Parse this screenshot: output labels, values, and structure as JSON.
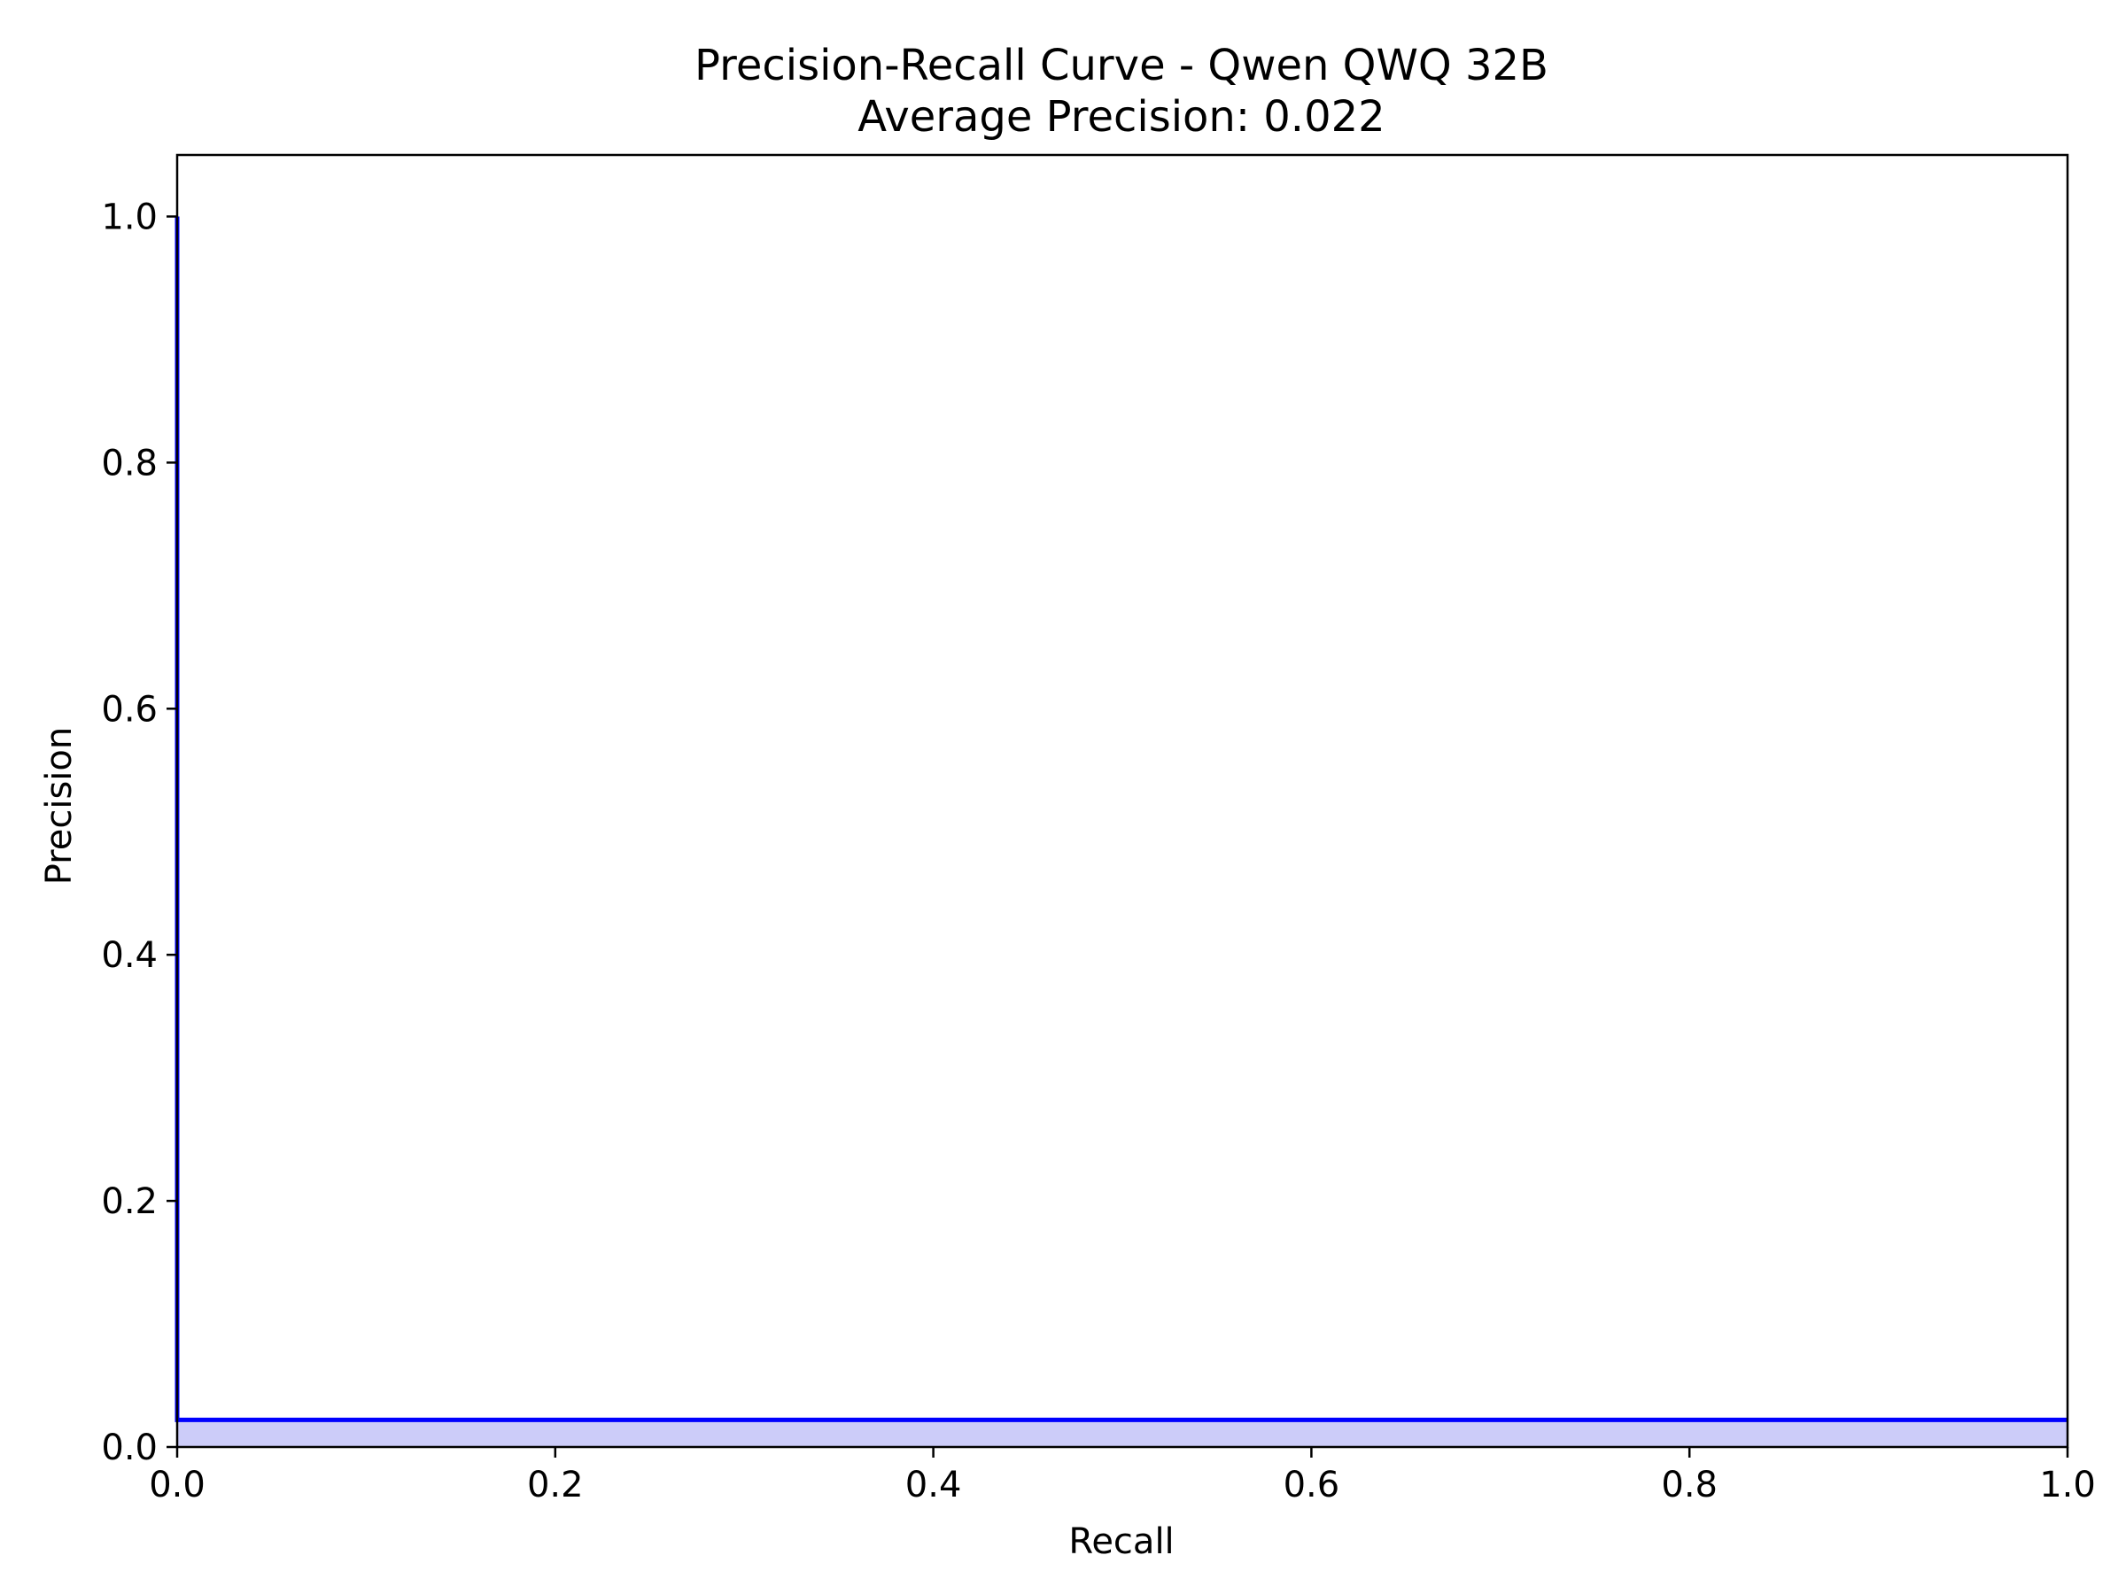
{
  "chart_data": {
    "type": "area",
    "title": "Precision-Recall Curve - Qwen QWQ 32B",
    "subtitle": "Average Precision: 0.022",
    "xlabel": "Recall",
    "ylabel": "Precision",
    "xlim": [
      0.0,
      1.0
    ],
    "ylim": [
      0.0,
      1.05
    ],
    "grid": false,
    "x_ticks": [
      0.0,
      0.2,
      0.4,
      0.6,
      0.8,
      1.0
    ],
    "x_tick_labels": [
      "0.0",
      "0.2",
      "0.4",
      "0.6",
      "0.8",
      "1.0"
    ],
    "y_ticks": [
      0.0,
      0.2,
      0.4,
      0.6,
      0.8,
      1.0
    ],
    "y_tick_labels": [
      "0.0",
      "0.2",
      "0.4",
      "0.6",
      "0.8",
      "1.0"
    ],
    "series": [
      {
        "name": "Precision-Recall",
        "color": "#0000ff",
        "fill_color": "#ccccf9",
        "step": "post",
        "x": [
          0.0,
          0.0,
          1.0
        ],
        "y": [
          1.0,
          0.022,
          0.022
        ]
      }
    ],
    "average_precision": 0.022
  }
}
